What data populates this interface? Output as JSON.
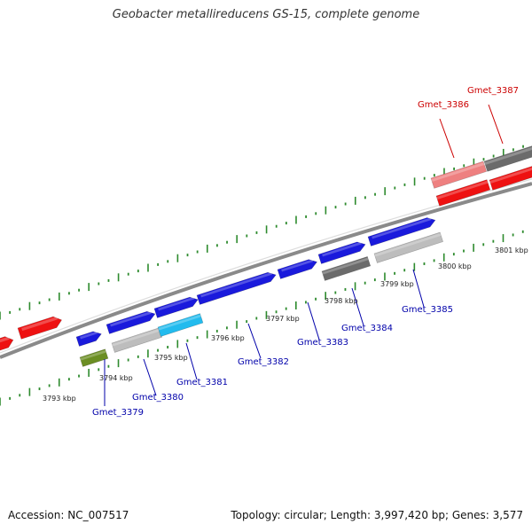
{
  "title": "Geobacter metallireducens GS-15, complete genome",
  "footer": {
    "accession": "Accession: NC_007517",
    "summary": "Topology: circular; Length: 3,997,420 bp; Genes: 3,577"
  },
  "colors": {
    "red": "#ee1111",
    "pink": "#ee8080",
    "blue": "#1a1adc",
    "cyan": "#22bbee",
    "lightgray": "#bdbdbd",
    "darkgray": "#6b6b6b",
    "olive": "#6b8e23",
    "tick": "#2e8b2e",
    "backbone": "#8a8a8a",
    "label_red": "#cc0000",
    "label_blue": "#0000aa"
  },
  "kbp_labels": [
    "3793 kbp",
    "3794 kbp",
    "3795 kbp",
    "3796 kbp",
    "3797 kbp",
    "3798 kbp",
    "3799 kbp",
    "3800 kbp",
    "3801 kbp"
  ],
  "gene_labels": [
    {
      "text": "Gmet_3379",
      "color": "blue"
    },
    {
      "text": "Gmet_3380",
      "color": "blue"
    },
    {
      "text": "Gmet_3381",
      "color": "blue"
    },
    {
      "text": "Gmet_3382",
      "color": "blue"
    },
    {
      "text": "Gmet_3383",
      "color": "blue"
    },
    {
      "text": "Gmet_3384",
      "color": "blue"
    },
    {
      "text": "Gmet_3385",
      "color": "blue"
    },
    {
      "text": "Gmet_3386",
      "color": "red"
    },
    {
      "text": "Gmet_3387",
      "color": "red"
    }
  ]
}
